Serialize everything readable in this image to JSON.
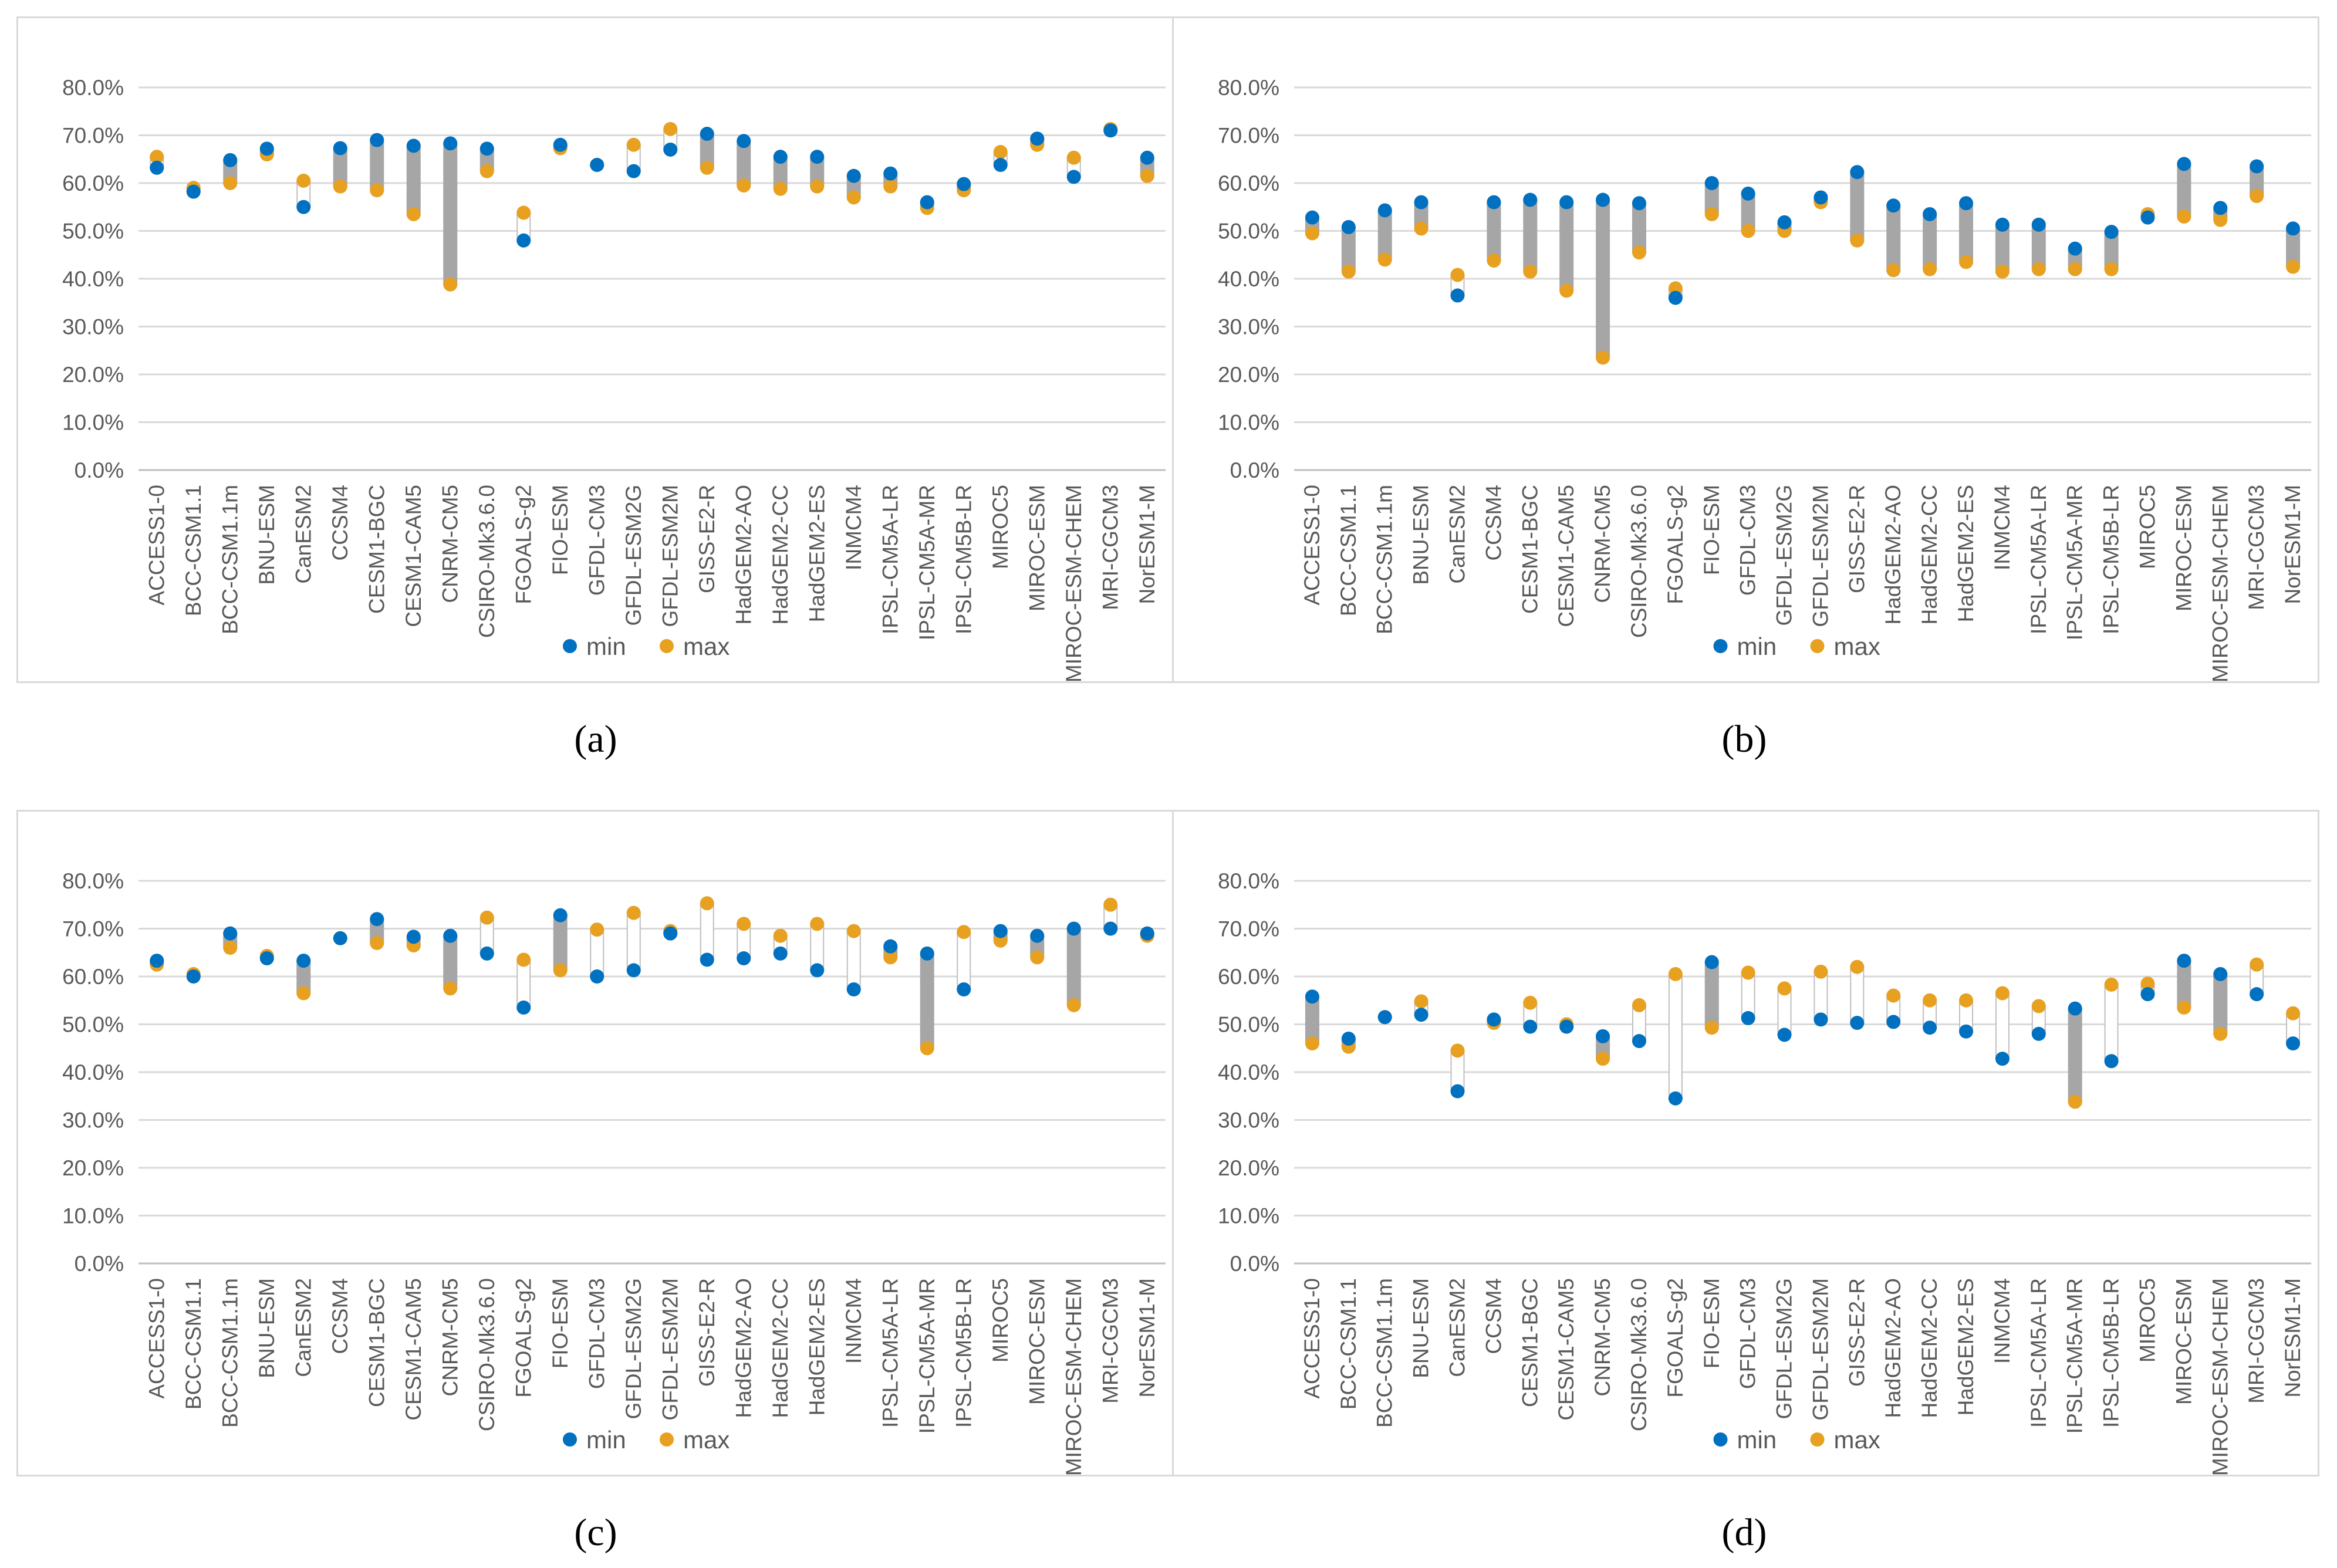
{
  "captions": [
    "(a)",
    "(b)",
    "(c)",
    "(d)"
  ],
  "colors": {
    "min": "#0070c0",
    "max": "#e8a020",
    "rangeFill": "#a6a6a6",
    "grid": "#d9d9d9",
    "axis": "#bfbfbf"
  },
  "legend": {
    "min_label": "min",
    "max_label": "max"
  },
  "chart_data": [
    {
      "id": "a",
      "type": "scatter",
      "title": "",
      "xlabel": "",
      "ylabel": "",
      "ylim": [
        0,
        80
      ],
      "yticks": [
        "0.0%",
        "10.0%",
        "20.0%",
        "30.0%",
        "40.0%",
        "50.0%",
        "60.0%",
        "70.0%",
        "80.0%"
      ],
      "categories": [
        "ACCESS1-0",
        "BCC-CSM1.1",
        "BCC-CSM1.1m",
        "BNU-ESM",
        "CanESM2",
        "CCSM4",
        "CESM1-BGC",
        "CESM1-CAM5",
        "CNRM-CM5",
        "CSIRO-Mk3.6.0",
        "FGOALS-g2",
        "FIO-ESM",
        "GFDL-CM3",
        "GFDL-ESM2G",
        "GFDL-ESM2M",
        "GISS-E2-R",
        "HadGEM2-AO",
        "HadGEM2-CC",
        "HadGEM2-ES",
        "INMCM4",
        "IPSL-CM5A-LR",
        "IPSL-CM5A-MR",
        "IPSL-CM5B-LR",
        "MIROC5",
        "MIROC-ESM",
        "MIROC-ESM-CHEM",
        "MRI-CGCM3",
        "NorESM1-M"
      ],
      "series": [
        {
          "name": "min",
          "values": [
            63.2,
            58.2,
            64.8,
            67.2,
            55.0,
            67.3,
            69.0,
            67.8,
            68.3,
            67.2,
            48.0,
            68.0,
            63.8,
            62.5,
            67.0,
            70.3,
            68.8,
            65.5,
            65.5,
            61.5,
            62.0,
            56.0,
            59.8,
            63.8,
            69.3,
            61.3,
            71.0,
            65.3
          ]
        },
        {
          "name": "max",
          "values": [
            65.5,
            59.0,
            60.0,
            66.0,
            60.5,
            59.3,
            58.5,
            53.5,
            38.8,
            62.5,
            53.8,
            67.3,
            63.8,
            68.0,
            71.3,
            63.2,
            59.5,
            58.8,
            59.3,
            57.0,
            59.3,
            54.8,
            58.5,
            66.5,
            68.0,
            65.3,
            71.3,
            61.5
          ]
        }
      ]
    },
    {
      "id": "b",
      "type": "scatter",
      "title": "",
      "xlabel": "",
      "ylabel": "",
      "ylim": [
        0,
        80
      ],
      "yticks": [
        "0.0%",
        "10.0%",
        "20.0%",
        "30.0%",
        "40.0%",
        "50.0%",
        "60.0%",
        "70.0%",
        "80.0%"
      ],
      "categories": [
        "ACCESS1-0",
        "BCC-CSM1.1",
        "BCC-CSM1.1m",
        "BNU-ESM",
        "CanESM2",
        "CCSM4",
        "CESM1-BGC",
        "CESM1-CAM5",
        "CNRM-CM5",
        "CSIRO-Mk3.6.0",
        "FGOALS-g2",
        "FIO-ESM",
        "GFDL-CM3",
        "GFDL-ESM2G",
        "GFDL-ESM2M",
        "GISS-E2-R",
        "HadGEM2-AO",
        "HadGEM2-CC",
        "HadGEM2-ES",
        "INMCM4",
        "IPSL-CM5A-LR",
        "IPSL-CM5A-MR",
        "IPSL-CM5B-LR",
        "MIROC5",
        "MIROC-ESM",
        "MIROC-ESM-CHEM",
        "MRI-CGCM3",
        "NorESM1-M"
      ],
      "series": [
        {
          "name": "min",
          "values": [
            52.8,
            50.8,
            54.3,
            56.0,
            36.5,
            56.0,
            56.5,
            56.0,
            56.5,
            55.8,
            36.0,
            60.0,
            57.8,
            51.8,
            57.0,
            62.3,
            55.3,
            53.5,
            55.8,
            51.3,
            51.3,
            46.3,
            49.8,
            52.8,
            64.0,
            54.8,
            63.5,
            50.5
          ]
        },
        {
          "name": "max",
          "values": [
            49.5,
            41.5,
            44.0,
            50.5,
            40.8,
            43.8,
            41.5,
            37.5,
            23.5,
            45.5,
            38.0,
            53.5,
            50.0,
            50.0,
            56.0,
            48.0,
            41.8,
            42.0,
            43.5,
            41.5,
            42.0,
            42.0,
            42.0,
            53.5,
            53.0,
            52.3,
            57.3,
            42.5
          ]
        }
      ]
    },
    {
      "id": "c",
      "type": "scatter",
      "title": "",
      "xlabel": "",
      "ylabel": "",
      "ylim": [
        0,
        80
      ],
      "yticks": [
        "0.0%",
        "10.0%",
        "20.0%",
        "30.0%",
        "40.0%",
        "50.0%",
        "60.0%",
        "70.0%",
        "80.0%"
      ],
      "categories": [
        "ACCESS1-0",
        "BCC-CSM1.1",
        "BCC-CSM1.1m",
        "BNU-ESM",
        "CanESM2",
        "CCSM4",
        "CESM1-BGC",
        "CESM1-CAM5",
        "CNRM-CM5",
        "CSIRO-Mk3.6.0",
        "FGOALS-g2",
        "FIO-ESM",
        "GFDL-CM3",
        "GFDL-ESM2G",
        "GFDL-ESM2M",
        "GISS-E2-R",
        "HadGEM2-AO",
        "HadGEM2-CC",
        "HadGEM2-ES",
        "INMCM4",
        "IPSL-CM5A-LR",
        "IPSL-CM5A-MR",
        "IPSL-CM5B-LR",
        "MIROC5",
        "MIROC-ESM",
        "MIROC-ESM-CHEM",
        "MRI-CGCM3",
        "NorESM1-M"
      ],
      "series": [
        {
          "name": "min",
          "values": [
            63.3,
            60.0,
            69.0,
            63.8,
            63.3,
            68.0,
            72.0,
            68.3,
            68.5,
            64.8,
            53.5,
            72.8,
            60.0,
            61.3,
            69.0,
            63.5,
            63.8,
            64.8,
            61.3,
            57.3,
            66.3,
            64.8,
            57.3,
            69.5,
            68.5,
            70.0,
            70.0,
            69.0
          ]
        },
        {
          "name": "max",
          "values": [
            62.5,
            60.5,
            66.0,
            64.3,
            56.5,
            68.0,
            67.0,
            66.5,
            57.5,
            72.3,
            63.5,
            61.3,
            69.8,
            73.3,
            69.5,
            75.3,
            71.0,
            68.5,
            71.0,
            69.5,
            64.0,
            45.0,
            69.3,
            67.5,
            64.0,
            54.0,
            75.0,
            68.5
          ]
        }
      ]
    },
    {
      "id": "d",
      "type": "scatter",
      "title": "",
      "xlabel": "",
      "ylabel": "",
      "ylim": [
        0,
        80
      ],
      "yticks": [
        "0.0%",
        "10.0%",
        "20.0%",
        "30.0%",
        "40.0%",
        "50.0%",
        "60.0%",
        "70.0%",
        "80.0%"
      ],
      "categories": [
        "ACCESS1-0",
        "BCC-CSM1.1",
        "BCC-CSM1.1m",
        "BNU-ESM",
        "CanESM2",
        "CCSM4",
        "CESM1-BGC",
        "CESM1-CAM5",
        "CNRM-CM5",
        "CSIRO-Mk3.6.0",
        "FGOALS-g2",
        "FIO-ESM",
        "GFDL-CM3",
        "GFDL-ESM2G",
        "GFDL-ESM2M",
        "GISS-E2-R",
        "HadGEM2-AO",
        "HadGEM2-CC",
        "HadGEM2-ES",
        "INMCM4",
        "IPSL-CM5A-LR",
        "IPSL-CM5A-MR",
        "IPSL-CM5B-LR",
        "MIROC5",
        "MIROC-ESM",
        "MIROC-ESM-CHEM",
        "MRI-CGCM3",
        "NorESM1-M"
      ],
      "series": [
        {
          "name": "min",
          "values": [
            55.8,
            47.0,
            51.5,
            52.0,
            36.0,
            51.0,
            49.5,
            49.5,
            47.5,
            46.5,
            34.5,
            63.0,
            51.3,
            47.8,
            51.0,
            50.3,
            50.5,
            49.3,
            48.5,
            42.8,
            48.0,
            53.3,
            42.3,
            56.3,
            63.3,
            60.5,
            56.3,
            46.0
          ]
        },
        {
          "name": "max",
          "values": [
            46.0,
            45.3,
            51.5,
            54.8,
            44.5,
            50.3,
            54.5,
            50.0,
            42.8,
            54.0,
            60.5,
            49.3,
            60.8,
            57.5,
            61.0,
            62.0,
            56.0,
            55.0,
            55.0,
            56.5,
            53.8,
            33.8,
            58.3,
            58.5,
            53.5,
            48.0,
            62.5,
            52.3
          ]
        }
      ]
    }
  ]
}
